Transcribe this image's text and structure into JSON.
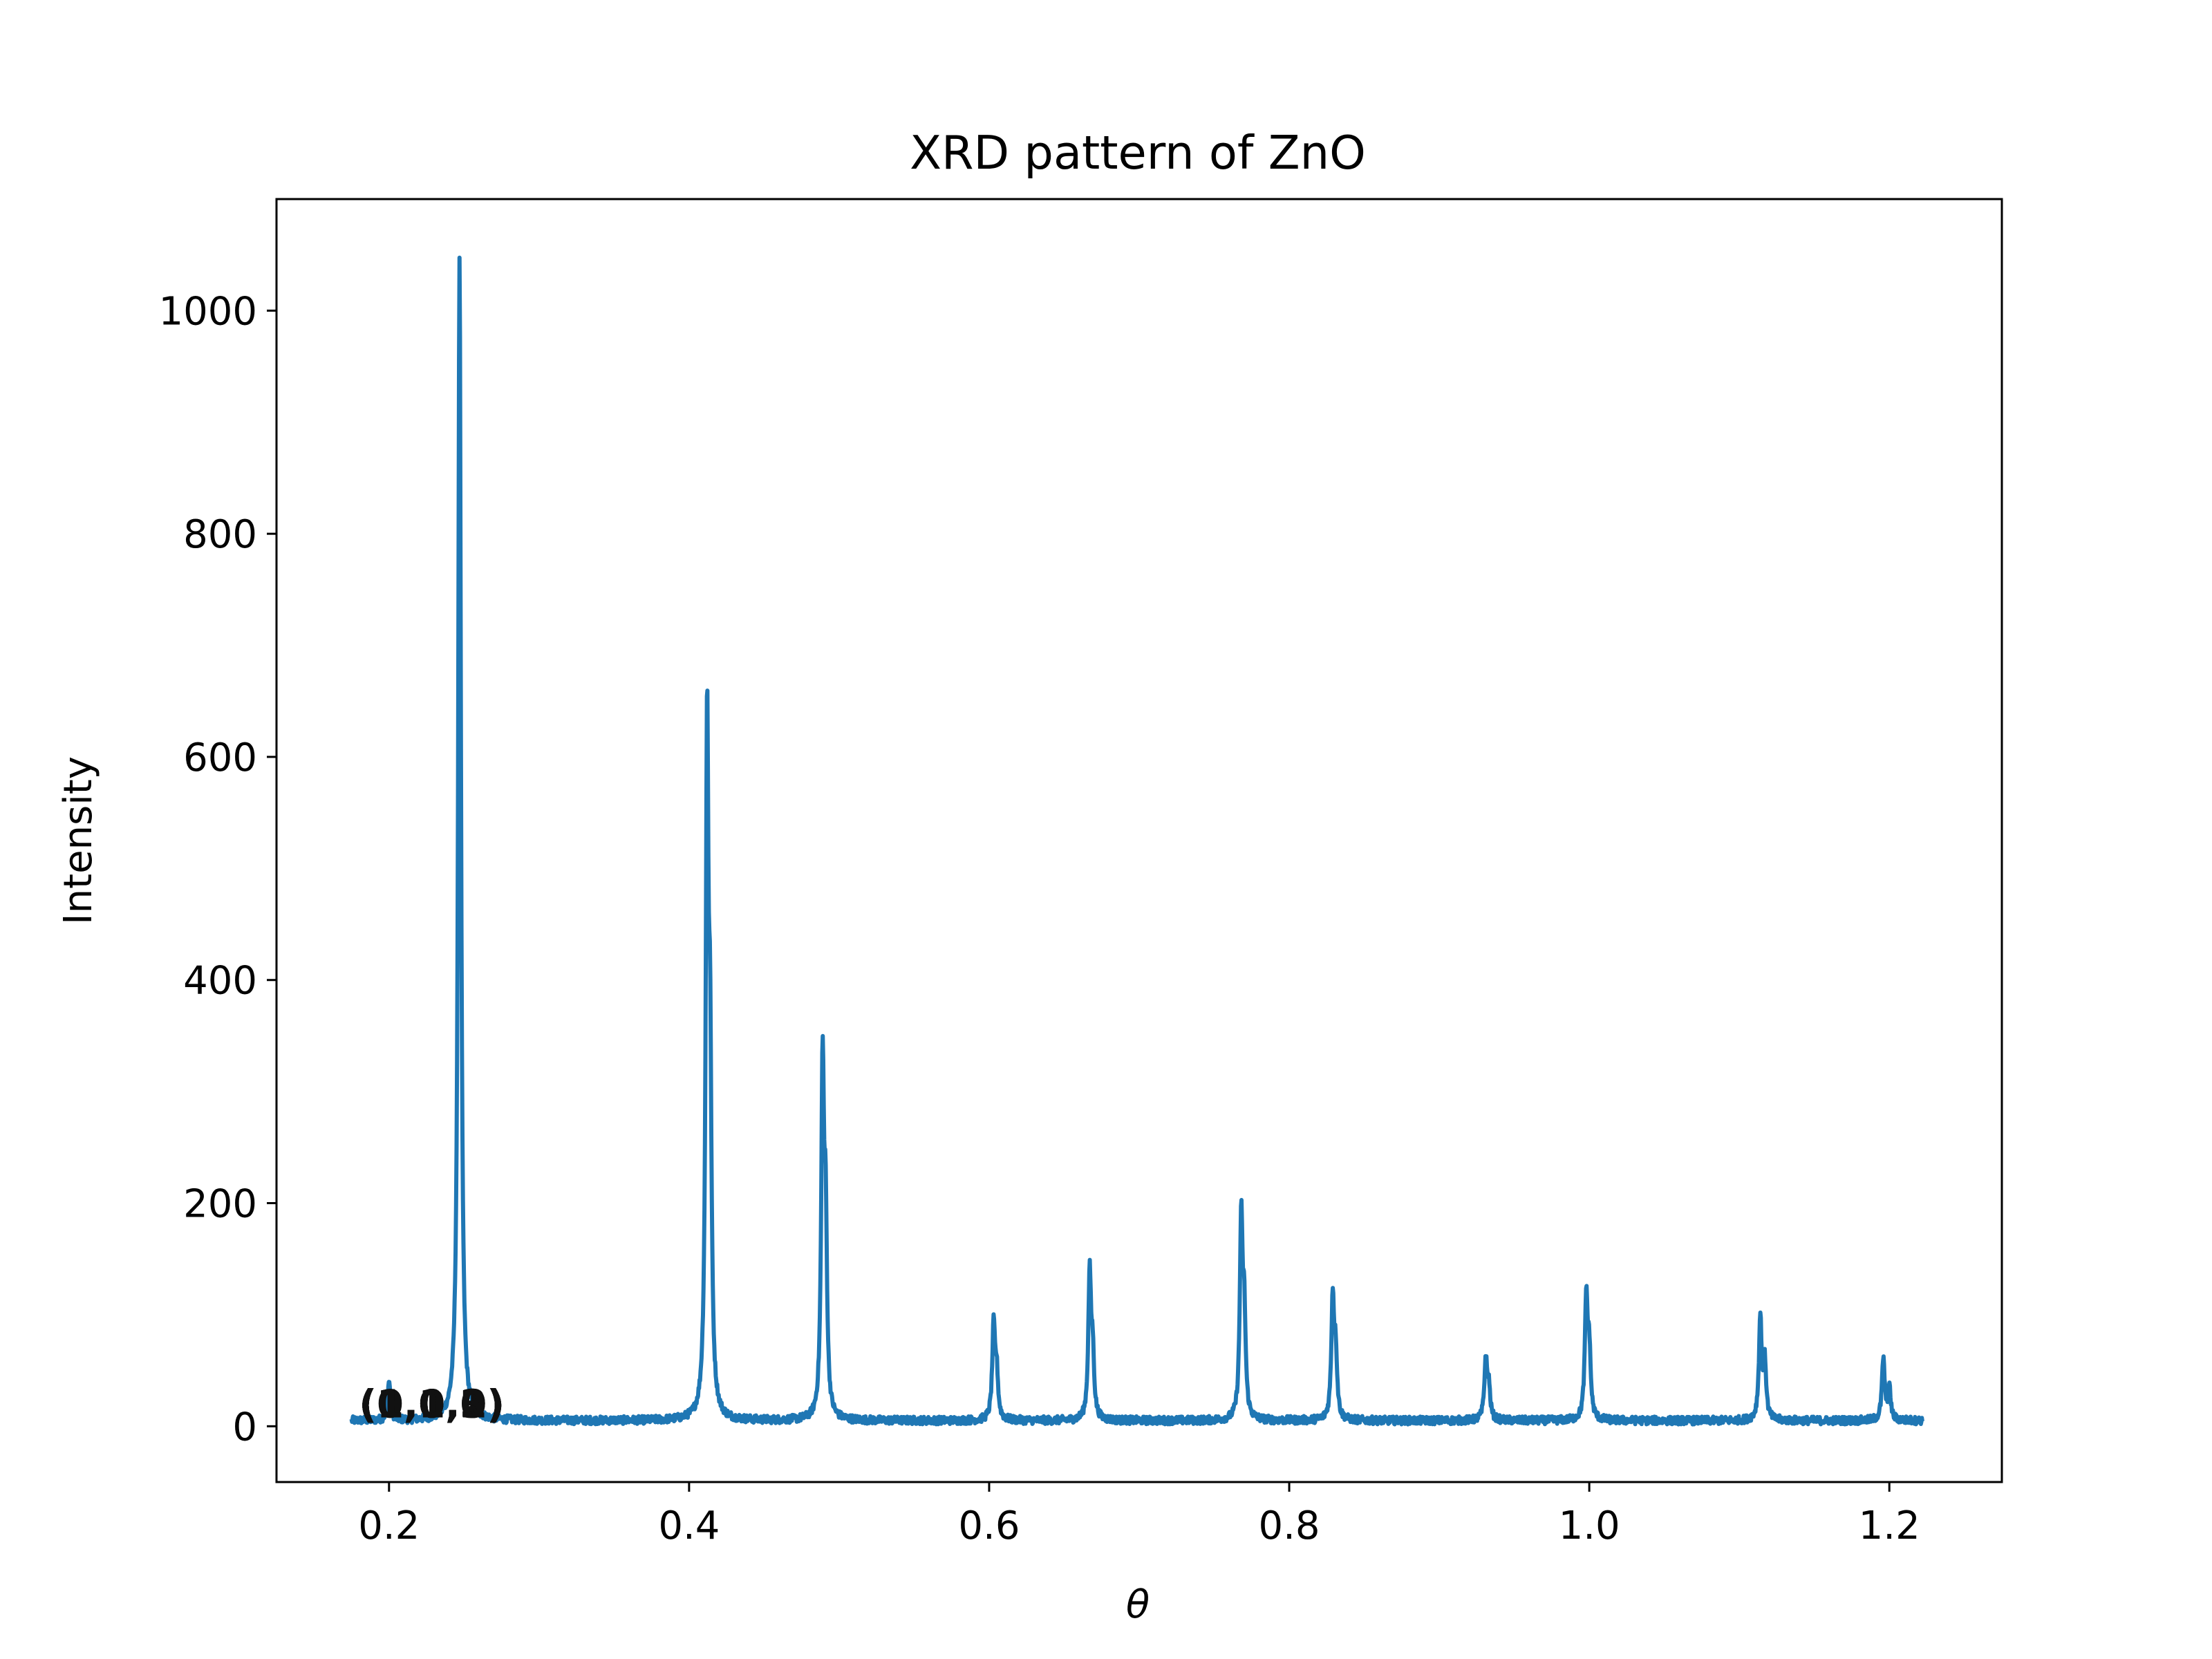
{
  "chart_data": {
    "type": "line",
    "title": "XRD pattern of ZnO",
    "xlabel": "θ",
    "ylabel": "Intensity",
    "xlim": [
      0.125,
      1.275
    ],
    "ylim": [
      -50,
      1100
    ],
    "xticks": [
      0.2,
      0.4,
      0.6,
      0.8,
      1.0,
      1.2
    ],
    "xtick_labels": [
      "0.2",
      "0.4",
      "0.6",
      "0.8",
      "1.0",
      "1.2"
    ],
    "yticks": [
      0,
      200,
      400,
      600,
      800,
      1000
    ],
    "ytick_labels": [
      "0",
      "200",
      "400",
      "600",
      "800",
      "1000"
    ],
    "grid": false,
    "line_color": "#1f77b4",
    "x_range": [
      0.175,
      1.222
    ],
    "baseline": 5,
    "peaks": [
      {
        "x": 0.247,
        "y": 1045
      },
      {
        "x": 0.412,
        "y": 598
      },
      {
        "x": 0.414,
        "y": 280
      },
      {
        "x": 0.489,
        "y": 310
      },
      {
        "x": 0.491,
        "y": 160
      },
      {
        "x": 0.603,
        "y": 83
      },
      {
        "x": 0.605,
        "y": 40
      },
      {
        "x": 0.667,
        "y": 128
      },
      {
        "x": 0.669,
        "y": 55
      },
      {
        "x": 0.768,
        "y": 176
      },
      {
        "x": 0.77,
        "y": 88
      },
      {
        "x": 0.829,
        "y": 108
      },
      {
        "x": 0.831,
        "y": 55
      },
      {
        "x": 0.931,
        "y": 53
      },
      {
        "x": 0.933,
        "y": 28
      },
      {
        "x": 0.998,
        "y": 108
      },
      {
        "x": 1.0,
        "y": 58
      },
      {
        "x": 1.114,
        "y": 91
      },
      {
        "x": 1.117,
        "y": 50
      },
      {
        "x": 1.196,
        "y": 55
      },
      {
        "x": 1.2,
        "y": 28
      },
      {
        "x": 0.2,
        "y": 35
      }
    ],
    "annotations": [
      {
        "text": "(1,0,0)",
        "x": 0.18,
        "y": 8
      },
      {
        "text": "(0,0,2)",
        "x": 0.18,
        "y": 8
      },
      {
        "text": "(1,0,1)",
        "x": 0.18,
        "y": 8
      },
      {
        "text": "(1,0,2)",
        "x": 0.18,
        "y": 8
      },
      {
        "text": "(1,1,0)",
        "x": 0.18,
        "y": 8
      },
      {
        "text": "(1,0,3)",
        "x": 0.18,
        "y": 8
      }
    ]
  }
}
